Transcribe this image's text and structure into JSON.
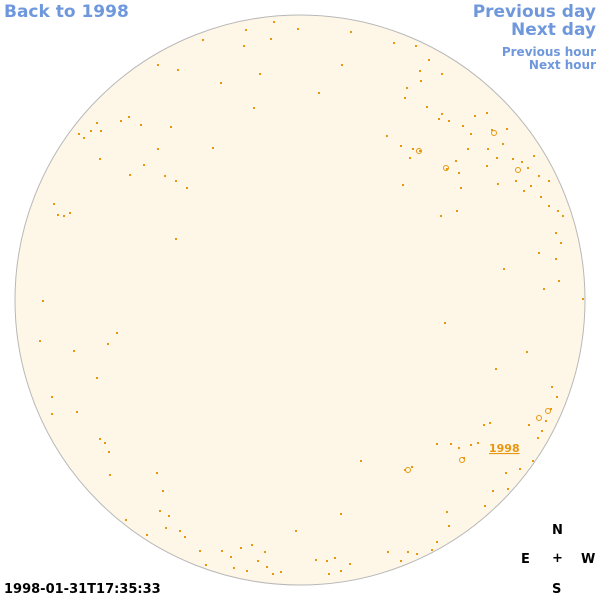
{
  "nav": {
    "back": "Back to 1998",
    "previous_day": "Previous day",
    "next_day": "Next day",
    "previous_hour": "Previous hour",
    "next_hour": "Next hour"
  },
  "compass": {
    "north": "N",
    "east": "E",
    "center": "+",
    "west": "W",
    "south": "S"
  },
  "timestamp": "1998-01-31T17:35:33",
  "region_link": "1998",
  "colors": {
    "disk_fill": "#fef7e8",
    "disk_border": "#b8b8b8",
    "feature": "#e8960f",
    "link": "#6f98dc"
  }
}
